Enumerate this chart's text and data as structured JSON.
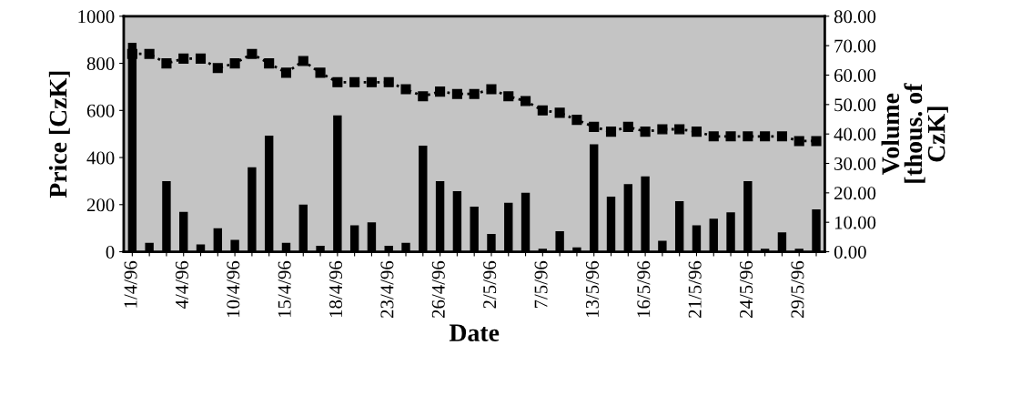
{
  "chart_data": {
    "type": "bar",
    "xlabel": "Date",
    "ylabel": "Price [CzK]",
    "y2label": "Volume\n[thous. of\nCzK]",
    "categories": [
      "1/4/96",
      null,
      null,
      "4/4/96",
      null,
      null,
      "10/4/96",
      null,
      null,
      "15/4/96",
      null,
      null,
      "18/4/96",
      null,
      null,
      "23/4/96",
      null,
      null,
      "26/4/96",
      null,
      null,
      "2/5/96",
      null,
      null,
      "7/5/96",
      null,
      null,
      "13/5/96",
      null,
      null,
      "16/5/96",
      null,
      null,
      "21/5/96",
      null,
      null,
      "24/5/96",
      null,
      null,
      "29/5/96",
      null
    ],
    "series": [
      {
        "axis": "y2",
        "color": "#000000",
        "values": [
          71,
          3,
          24,
          13.5,
          2.5,
          8,
          4,
          28.7,
          39.4,
          3,
          16,
          2,
          46.3,
          9,
          10,
          2,
          3,
          36,
          24,
          20.6,
          15.3,
          6,
          16.6,
          20,
          1,
          7,
          1.5,
          36.5,
          18.7,
          23,
          25.6,
          3.7,
          17.2,
          9,
          11.2,
          13.4,
          24,
          1,
          6.6,
          1,
          14.4
        ]
      },
      {
        "type": "line",
        "color": "#000000",
        "marker": "square",
        "line_style": "dotted",
        "values": [
          840,
          840,
          800,
          820,
          820,
          780,
          800,
          840,
          800,
          760,
          810,
          760,
          720,
          720,
          720,
          720,
          690,
          660,
          680,
          670,
          670,
          690,
          660,
          640,
          600,
          590,
          560,
          530,
          510,
          530,
          510,
          520,
          520,
          510,
          490,
          490,
          490,
          490,
          490,
          470,
          470
        ]
      }
    ],
    "ylim": [
      0,
      1000
    ],
    "yticks": [
      0,
      200,
      400,
      600,
      800,
      1000
    ],
    "y2lim": [
      0,
      80
    ],
    "y2ticks": [
      {
        "value": 0,
        "label": "0.00"
      },
      {
        "value": 10,
        "label": "10.00"
      },
      {
        "value": 20,
        "label": "20.00"
      },
      {
        "value": 30,
        "label": "30.00"
      },
      {
        "value": 40,
        "label": "40.00"
      },
      {
        "value": 50,
        "label": "50.00"
      },
      {
        "value": 60,
        "label": "60.00"
      },
      {
        "value": 70,
        "label": "70.00"
      },
      {
        "value": 80,
        "label": "80.00"
      }
    ],
    "grid": false,
    "legend": false
  }
}
